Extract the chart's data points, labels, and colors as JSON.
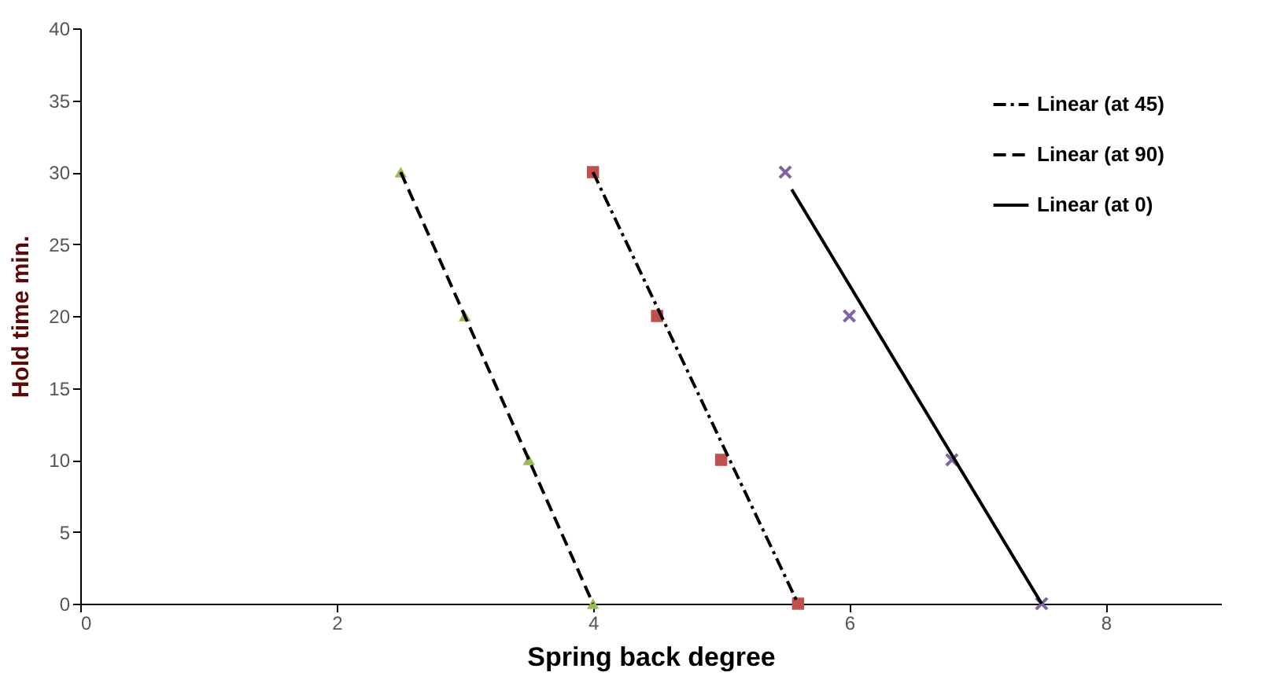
{
  "chart_data": {
    "type": "scatter",
    "xlabel": "Spring back degree",
    "ylabel": "Hold time min.",
    "xlim": [
      0,
      8.9
    ],
    "xticks": [
      0,
      2,
      4,
      6,
      8
    ],
    "ylim": [
      0,
      40
    ],
    "yticks": [
      0,
      5,
      10,
      15,
      20,
      25,
      30,
      35,
      40
    ],
    "grid": false,
    "legend": "top right",
    "series": [
      {
        "marker": "square",
        "color": "#c0504d",
        "x": [
          4,
          4.5,
          5,
          5.6
        ],
        "values": [
          30,
          20,
          10,
          0
        ]
      },
      {
        "marker": "triangle",
        "color": "#9bbb59",
        "x": [
          2.5,
          3,
          3.5,
          4
        ],
        "values": [
          30,
          20,
          10,
          0
        ]
      },
      {
        "marker": "cross",
        "color": "#8064a2",
        "x": [
          5.5,
          6,
          6.8,
          7.5
        ],
        "values": [
          30,
          20,
          10,
          0
        ]
      },
      {
        "type": "line",
        "name": "Linear (at 45)",
        "line_style": "dashdot",
        "color": "#000000",
        "x": [
          4,
          5.6
        ],
        "values": [
          30,
          0
        ]
      },
      {
        "type": "line",
        "name": "Linear (at 90)",
        "line_style": "dashed",
        "color": "#000000",
        "x": [
          2.5,
          4
        ],
        "values": [
          30,
          0
        ]
      },
      {
        "type": "line",
        "name": "Linear (at 0)",
        "line_style": "solid",
        "color": "#000000",
        "x": [
          5.55,
          7.5
        ],
        "values": [
          28.8,
          0
        ]
      }
    ]
  }
}
